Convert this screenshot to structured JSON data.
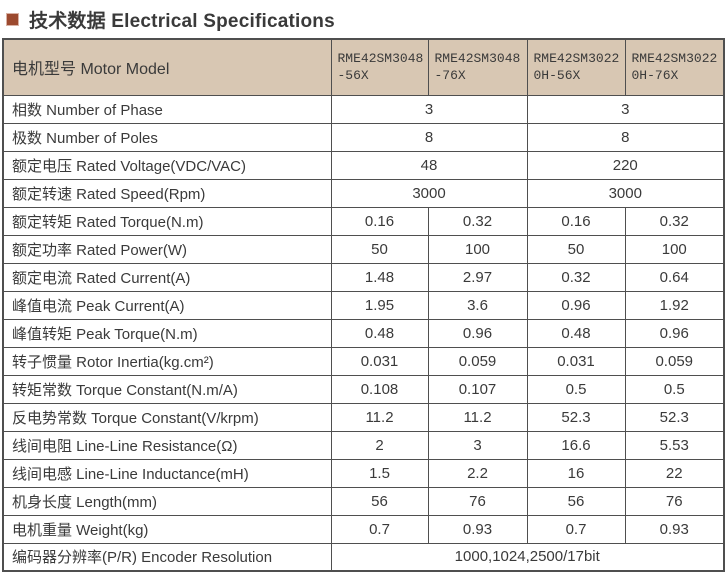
{
  "title": {
    "text": "技术数据 Electrical Specifications"
  },
  "colors": {
    "accent_bullet": "#9c4a2f",
    "header_background": "#d8c7b3",
    "border": "#4f4f4f",
    "text": "#3a3a3a"
  },
  "table": {
    "header": {
      "label": "电机型号 Motor Model",
      "columns": [
        "RME42SM3048-56X",
        "RME42SM3048-76X",
        "RME42SM30220H-56X",
        "RME42SM30220H-76X"
      ]
    },
    "rows": [
      {
        "label": "相数 Number of Phase",
        "span": 2,
        "values": [
          "3",
          "3"
        ]
      },
      {
        "label": "极数 Number of Poles",
        "span": 2,
        "values": [
          "8",
          "8"
        ]
      },
      {
        "label": "额定电压 Rated Voltage(VDC/VAC)",
        "span": 2,
        "values": [
          "48",
          "220"
        ]
      },
      {
        "label": "额定转速 Rated Speed(Rpm)",
        "span": 2,
        "values": [
          "3000",
          "3000"
        ]
      },
      {
        "label": "额定转矩 Rated Torque(N.m)",
        "span": 1,
        "values": [
          "0.16",
          "0.32",
          "0.16",
          "0.32"
        ]
      },
      {
        "label": "额定功率 Rated Power(W)",
        "span": 1,
        "values": [
          "50",
          "100",
          "50",
          "100"
        ]
      },
      {
        "label": "额定电流 Rated Current(A)",
        "span": 1,
        "values": [
          "1.48",
          "2.97",
          "0.32",
          "0.64"
        ]
      },
      {
        "label": "峰值电流 Peak Current(A)",
        "span": 1,
        "values": [
          "1.95",
          "3.6",
          "0.96",
          "1.92"
        ]
      },
      {
        "label": "峰值转矩 Peak Torque(N.m)",
        "span": 1,
        "values": [
          "0.48",
          "0.96",
          "0.48",
          "0.96"
        ]
      },
      {
        "label": "转子惯量 Rotor Inertia(kg.cm²)",
        "span": 1,
        "values": [
          "0.031",
          "0.059",
          "0.031",
          "0.059"
        ]
      },
      {
        "label": "转矩常数 Torque Constant(N.m/A)",
        "span": 1,
        "values": [
          "0.108",
          "0.107",
          "0.5",
          "0.5"
        ]
      },
      {
        "label": "反电势常数 Torque Constant(V/krpm)",
        "span": 1,
        "values": [
          "11.2",
          "11.2",
          "52.3",
          "52.3"
        ]
      },
      {
        "label": "线间电阻 Line-Line Resistance(Ω)",
        "span": 1,
        "values": [
          "2",
          "3",
          "16.6",
          "5.53"
        ]
      },
      {
        "label": "线间电感 Line-Line Inductance(mH)",
        "span": 1,
        "values": [
          "1.5",
          "2.2",
          "16",
          "22"
        ]
      },
      {
        "label": "机身长度 Length(mm)",
        "span": 1,
        "values": [
          "56",
          "76",
          "56",
          "76"
        ]
      },
      {
        "label": "电机重量 Weight(kg)",
        "span": 1,
        "values": [
          "0.7",
          "0.93",
          "0.7",
          "0.93"
        ]
      },
      {
        "label": "编码器分辨率(P/R) Encoder Resolution",
        "span": 4,
        "values": [
          "1000,1024,2500/17bit"
        ]
      }
    ]
  }
}
